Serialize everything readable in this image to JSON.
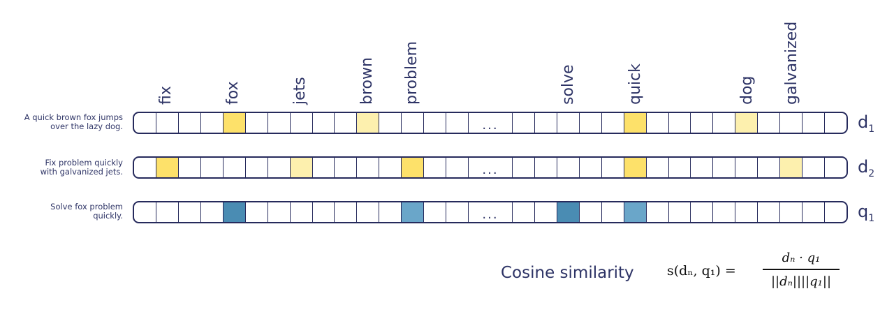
{
  "colors": {
    "ink": "#2e3466",
    "border": "#262a5c",
    "highlight_strong": "#fde16a",
    "highlight_light": "#fdf0ae",
    "query_dark": "#4a8cb3",
    "query_light": "#6aa6c9"
  },
  "vocabulary": [
    {
      "word": "fix",
      "cell": 1
    },
    {
      "word": "fox",
      "cell": 4
    },
    {
      "word": "jets",
      "cell": 7
    },
    {
      "word": "brown",
      "cell": 10
    },
    {
      "word": "problem",
      "cell": 12
    },
    {
      "word": "solve",
      "cell": 18
    },
    {
      "word": "quick",
      "cell": 21
    },
    {
      "word": "dog",
      "cell": 26
    },
    {
      "word": "galvanized",
      "cell": 28
    }
  ],
  "ellipsis": "...",
  "rows": [
    {
      "label": "d",
      "sub": "1",
      "text_lines": [
        "A quick brown fox jumps",
        "over the lazy dog."
      ],
      "highlights": {
        "4": "strong",
        "10": "light",
        "21": "strong",
        "26": "light"
      }
    },
    {
      "label": "d",
      "sub": "2",
      "text_lines": [
        "Fix problem quickly",
        "with galvanized jets."
      ],
      "highlights": {
        "1": "strong",
        "7": "light",
        "12": "strong",
        "21": "strong",
        "28": "light"
      }
    },
    {
      "label": "q",
      "sub": "1",
      "text_lines": [
        "Solve fox problem",
        "quickly."
      ],
      "highlights": {
        "4": "query_dark",
        "12": "query_light",
        "18": "query_dark",
        "21": "query_light"
      }
    }
  ],
  "cosine": {
    "label": "Cosine similarity",
    "lhs": "s(dₙ, q₁) =",
    "numerator": "dₙ · q₁",
    "denominator": "||dₙ||||q₁||"
  }
}
